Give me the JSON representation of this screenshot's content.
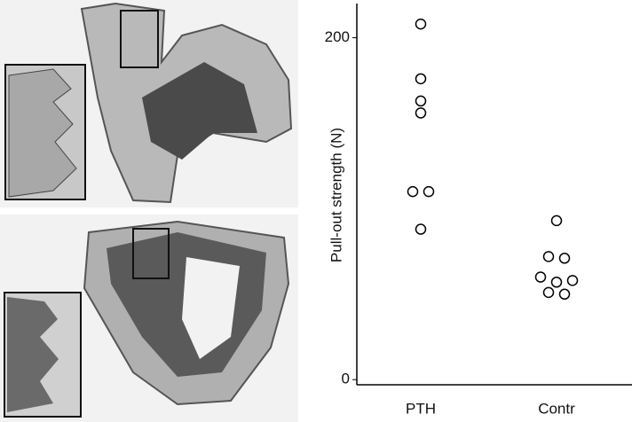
{
  "chart_data": {
    "type": "strip",
    "y_label": "Pull-out strength (N)",
    "categories": [
      "PTH",
      "Contr"
    ],
    "values": [
      [
        208,
        176,
        163,
        156,
        110,
        110,
        88
      ],
      [
        93,
        72,
        71,
        60,
        57,
        58,
        51,
        50
      ]
    ],
    "color": "#000000",
    "ylim": [
      -3,
      220
    ],
    "yticks": [
      0,
      200
    ],
    "grid": false
  }
}
